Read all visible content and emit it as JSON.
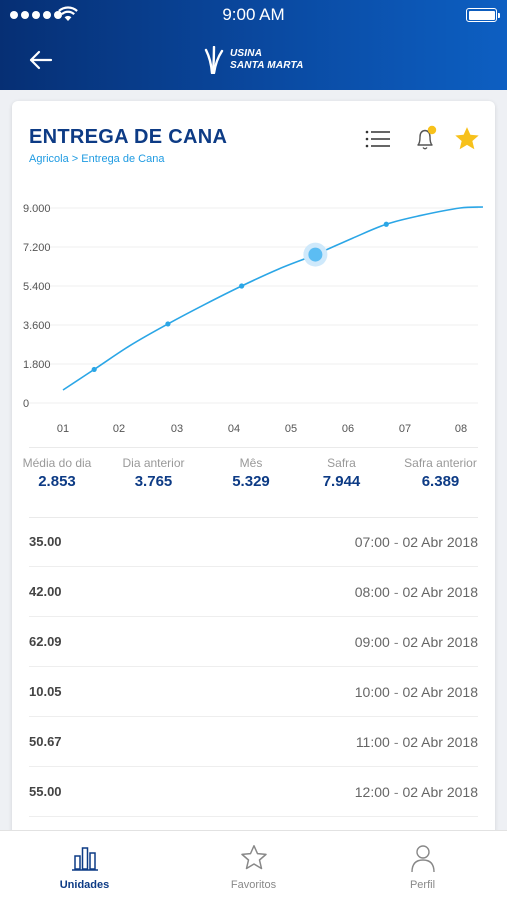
{
  "status_bar": {
    "time": "9:00 AM"
  },
  "header": {
    "logo_line1": "USINA",
    "logo_line2": "SANTA MARTA"
  },
  "page": {
    "title": "ENTREGA DE CANA",
    "breadcrumb": "Agricola > Entrega de Cana"
  },
  "colors": {
    "header": "#0a4aa2",
    "accent": "#0d3b85",
    "line": "#2ba6e6",
    "star": "#f7c11b"
  },
  "chart_data": {
    "type": "line",
    "y_ticks": [
      "9.000",
      "7.200",
      "5.400",
      "3.600",
      "1.800",
      "0"
    ],
    "x_ticks": [
      "01",
      "02",
      "03",
      "04",
      "05",
      "06",
      "07",
      "08"
    ],
    "ylim": [
      0,
      9000
    ],
    "xlim": [
      1,
      8
    ],
    "x": [
      1.0,
      1.55,
      2.2,
      2.85,
      3.5,
      4.15,
      4.8,
      5.45,
      6.1,
      6.7,
      7.3,
      8.0
    ],
    "y": [
      600,
      1550,
      2680,
      3650,
      4550,
      5400,
      6180,
      6850,
      7600,
      8250,
      8650,
      9000
    ],
    "markers_x": [
      1.55,
      2.85,
      4.15,
      6.7
    ],
    "highlight_x": 5.45,
    "grid": true
  },
  "stats": [
    {
      "label": "Média do dia",
      "value": "2.853"
    },
    {
      "label": "Dia anterior",
      "value": "3.765"
    },
    {
      "label": "Mês",
      "value": "5.329"
    },
    {
      "label": "Safra",
      "value": "7.944"
    },
    {
      "label": "Safra anterior",
      "value": "6.389"
    }
  ],
  "rows": [
    {
      "amount": "35.00",
      "time": "07:00",
      "date": "02 Abr 2018"
    },
    {
      "amount": "42.00",
      "time": "08:00",
      "date": "02 Abr 2018"
    },
    {
      "amount": "62.09",
      "time": "09:00",
      "date": "02 Abr 2018"
    },
    {
      "amount": "10.05",
      "time": "10:00",
      "date": "02 Abr 2018"
    },
    {
      "amount": "50.67",
      "time": "11:00",
      "date": "02 Abr 2018"
    },
    {
      "amount": "55.00",
      "time": "12:00",
      "date": "02 Abr 2018"
    }
  ],
  "row_separator": "-",
  "tabs": [
    {
      "label": "Unidades",
      "icon": "bar-chart-icon",
      "active": true
    },
    {
      "label": "Favoritos",
      "icon": "star-outline-icon",
      "active": false
    },
    {
      "label": "Perfil",
      "icon": "user-icon",
      "active": false
    }
  ]
}
